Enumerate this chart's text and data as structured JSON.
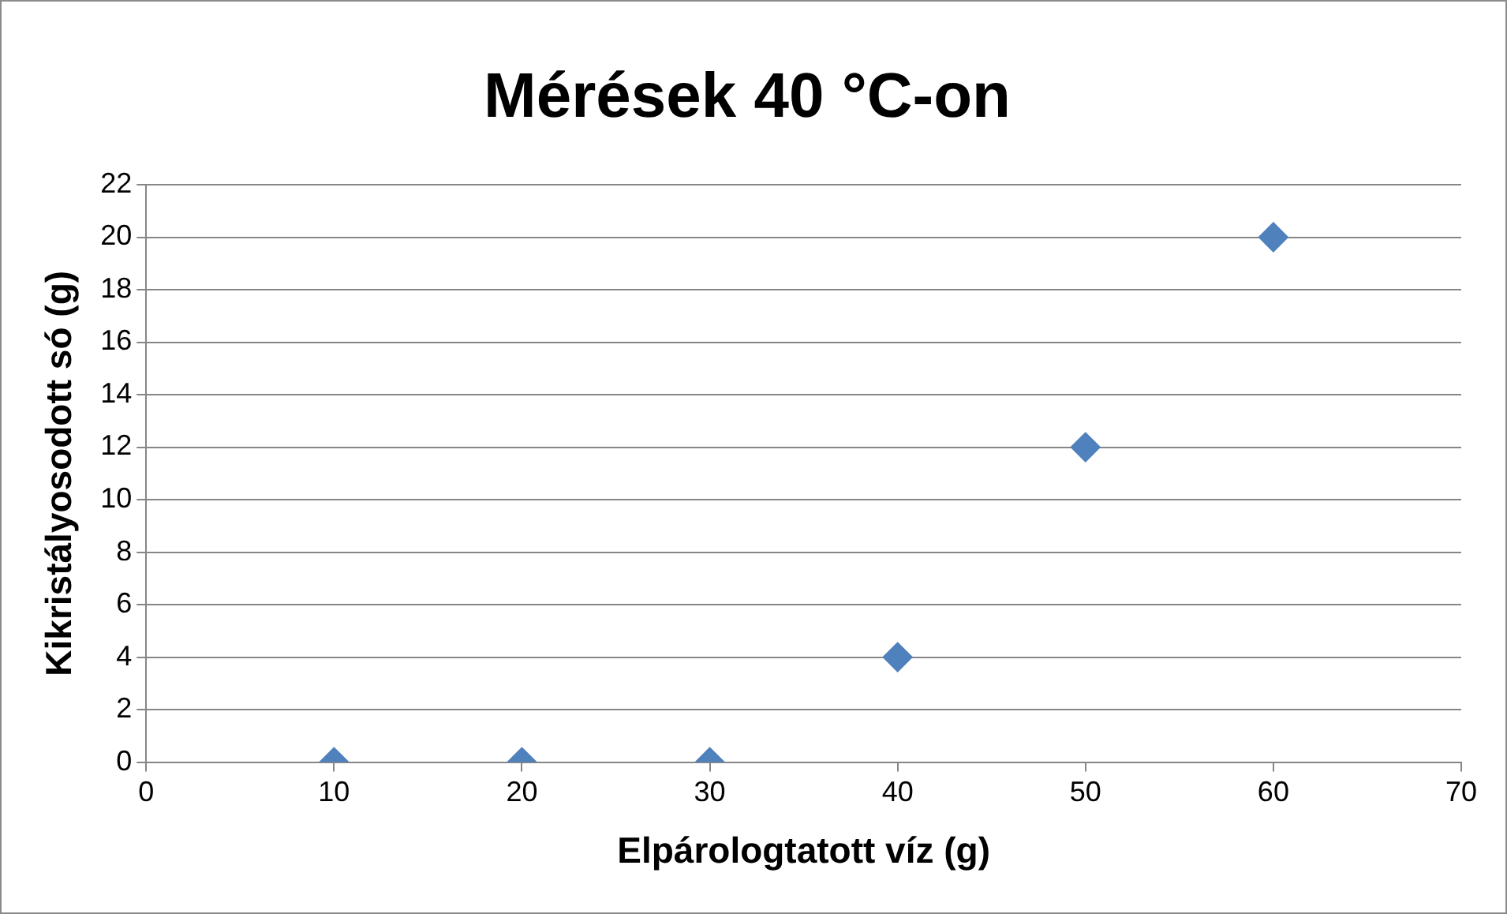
{
  "chart_data": {
    "type": "scatter",
    "title": "Mérések 40 °C-on",
    "xlabel": "Elpárologtatott víz (g)",
    "ylabel": "Kikristályosodott só (g)",
    "x": [
      10,
      20,
      30,
      40,
      50,
      60
    ],
    "series": [
      {
        "color": "#4f81bd",
        "values": [
          0,
          0,
          0,
          4,
          12,
          20
        ]
      }
    ],
    "xlim": [
      0,
      70
    ],
    "xticks": [
      0,
      10,
      20,
      30,
      40,
      50,
      60,
      70
    ],
    "ylim": [
      0,
      22
    ],
    "yticks": [
      0,
      2,
      4,
      6,
      8,
      10,
      12,
      14,
      16,
      18,
      20,
      22
    ],
    "grid": "y",
    "marker": "diamond"
  }
}
